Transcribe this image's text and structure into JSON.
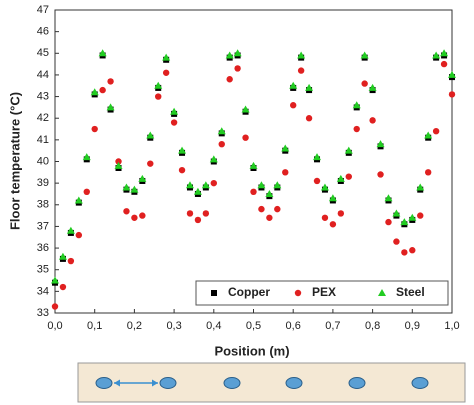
{
  "chart_data": {
    "type": "scatter",
    "xlabel": "Position (m)",
    "ylabel": "Floor temperature (°C)",
    "x": [
      0,
      0.02,
      0.04,
      0.06,
      0.08,
      0.1,
      0.12,
      0.14,
      0.16,
      0.18,
      0.2,
      0.22,
      0.24,
      0.26,
      0.28,
      0.3,
      0.32,
      0.34,
      0.36,
      0.38,
      0.4,
      0.42,
      0.44,
      0.46,
      0.48,
      0.5,
      0.52,
      0.54,
      0.56,
      0.58,
      0.6,
      0.62,
      0.64,
      0.66,
      0.68,
      0.7,
      0.72,
      0.74,
      0.76,
      0.78,
      0.8,
      0.82,
      0.84,
      0.86,
      0.88,
      0.9,
      0.92,
      0.94,
      0.96,
      0.98,
      1
    ],
    "series": [
      {
        "name": "Copper",
        "color": "#000000",
        "marker": "square",
        "values": [
          34.4,
          35.5,
          36.7,
          38.1,
          40.1,
          43.1,
          44.9,
          42.4,
          39.7,
          38.7,
          38.6,
          39.1,
          41.1,
          43.4,
          44.7,
          42.2,
          40.4,
          38.8,
          38.5,
          38.8,
          40.0,
          41.3,
          44.8,
          44.9,
          42.3,
          39.7,
          38.8,
          38.4,
          38.8,
          40.5,
          43.4,
          44.8,
          43.3,
          40.1,
          38.7,
          38.2,
          39.1,
          40.4,
          42.5,
          44.8,
          43.3,
          40.7,
          38.2,
          37.5,
          37.1,
          37.3,
          38.7,
          41.1,
          44.8,
          44.9,
          43.9
        ]
      },
      {
        "name": "PEX",
        "color": "#e02020",
        "marker": "circle",
        "values": [
          33.3,
          34.2,
          35.4,
          36.6,
          38.6,
          41.5,
          43.3,
          43.7,
          40.0,
          37.7,
          37.4,
          37.5,
          39.9,
          43.0,
          44.1,
          41.8,
          39.6,
          37.6,
          37.3,
          37.6,
          39.0,
          40.8,
          43.8,
          44.3,
          41.1,
          38.6,
          37.8,
          37.4,
          37.8,
          39.5,
          42.6,
          44.2,
          42.0,
          39.1,
          37.4,
          37.1,
          37.6,
          39.3,
          41.5,
          43.6,
          41.9,
          39.4,
          37.2,
          36.3,
          35.8,
          35.9,
          37.5,
          39.5,
          41.4,
          44.5,
          43.1
        ]
      },
      {
        "name": "Steel",
        "color": "#22cc22",
        "marker": "triangle",
        "values": [
          34.5,
          35.6,
          36.8,
          38.2,
          40.2,
          43.2,
          45.0,
          42.5,
          39.8,
          38.8,
          38.7,
          39.2,
          41.2,
          43.5,
          44.8,
          42.3,
          40.5,
          38.9,
          38.6,
          38.9,
          40.1,
          41.4,
          44.9,
          45.0,
          42.4,
          39.8,
          38.9,
          38.5,
          38.9,
          40.6,
          43.5,
          44.9,
          43.4,
          40.2,
          38.8,
          38.3,
          39.2,
          40.5,
          42.6,
          44.9,
          43.4,
          40.8,
          38.3,
          37.6,
          37.2,
          37.4,
          38.8,
          41.2,
          44.9,
          45.0,
          44.0
        ]
      }
    ],
    "xlim": [
      0,
      1
    ],
    "ylim": [
      33,
      47
    ],
    "xticks": [
      {
        "value": 0,
        "label": "0,0"
      },
      {
        "value": 0.1,
        "label": "0,1"
      },
      {
        "value": 0.2,
        "label": "0,2"
      },
      {
        "value": 0.3,
        "label": "0,3"
      },
      {
        "value": 0.4,
        "label": "0,4"
      },
      {
        "value": 0.5,
        "label": "0,5"
      },
      {
        "value": 0.6,
        "label": "0,6"
      },
      {
        "value": 0.7,
        "label": "0,7"
      },
      {
        "value": 0.8,
        "label": "0,8"
      },
      {
        "value": 0.9,
        "label": "0,9"
      },
      {
        "value": 1,
        "label": "1,0"
      }
    ],
    "yticks": [
      33,
      34,
      35,
      36,
      37,
      38,
      39,
      40,
      41,
      42,
      43,
      44,
      45,
      46,
      47
    ],
    "grid": false,
    "legend": "lower right"
  }
}
